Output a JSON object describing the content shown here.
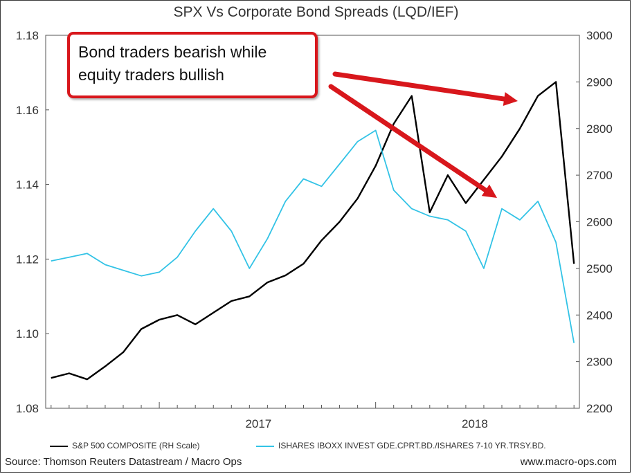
{
  "chart_data": {
    "type": "line",
    "title": "SPX Vs Corporate Bond Spreads (LQD/IEF)",
    "x_tick_labels": [
      "2017",
      "2018"
    ],
    "left_axis": {
      "ylim": [
        1.08,
        1.18
      ],
      "ticks": [
        "1.08",
        "1.10",
        "1.12",
        "1.14",
        "1.16",
        "1.18"
      ]
    },
    "right_axis": {
      "ylim": [
        2200,
        3000
      ],
      "ticks": [
        "2200",
        "2300",
        "2400",
        "2500",
        "2600",
        "2700",
        "2800",
        "2900",
        "3000"
      ]
    },
    "grid": false,
    "legend_position": "bottom",
    "series": [
      {
        "name": "S&P 500 COMPOSITE (RH Scale)",
        "axis": "right",
        "color": "#000000",
        "x": [
          "2016-07",
          "2016-08",
          "2016-09",
          "2016-10",
          "2016-11",
          "2016-12",
          "2017-01",
          "2017-02",
          "2017-03",
          "2017-04",
          "2017-05",
          "2017-06",
          "2017-07",
          "2017-08",
          "2017-09",
          "2017-10",
          "2017-11",
          "2017-12",
          "2018-01",
          "2018-02",
          "2018-03",
          "2018-04",
          "2018-05",
          "2018-06",
          "2018-07",
          "2018-08",
          "2018-09",
          "2018-10",
          "2018-11",
          "2018-12"
        ],
        "values": [
          2265,
          2275,
          2262,
          2290,
          2320,
          2370,
          2390,
          2400,
          2380,
          2405,
          2430,
          2440,
          2470,
          2485,
          2510,
          2560,
          2600,
          2650,
          2720,
          2810,
          2870,
          2620,
          2700,
          2640,
          2690,
          2740,
          2800,
          2870,
          2900,
          2510
        ]
      },
      {
        "name": "ISHARES IBOXX INVEST GDE.CPRT.BD./ISHARES 7-10 YR.TRSY.BD.",
        "axis": "left",
        "color": "#33c3e6",
        "x": [
          "2016-07",
          "2016-08",
          "2016-09",
          "2016-10",
          "2016-11",
          "2016-12",
          "2017-01",
          "2017-02",
          "2017-03",
          "2017-04",
          "2017-05",
          "2017-06",
          "2017-07",
          "2017-08",
          "2017-09",
          "2017-10",
          "2017-11",
          "2017-12",
          "2018-01",
          "2018-02",
          "2018-03",
          "2018-04",
          "2018-05",
          "2018-06",
          "2018-07",
          "2018-08",
          "2018-09",
          "2018-10",
          "2018-11",
          "2018-12"
        ],
        "values": [
          1.1195,
          1.1205,
          1.1215,
          1.1185,
          1.117,
          1.1155,
          1.1165,
          1.1205,
          1.1275,
          1.1335,
          1.1275,
          1.1175,
          1.1255,
          1.1355,
          1.1415,
          1.1395,
          1.1455,
          1.1515,
          1.1545,
          1.1385,
          1.1335,
          1.1315,
          1.1305,
          1.1275,
          1.1175,
          1.1335,
          1.1305,
          1.1355,
          1.1245,
          1.0975
        ]
      }
    ],
    "annotations": [
      {
        "text": "Bond traders bearish while equity traders bullish",
        "color": "#d8171c"
      }
    ]
  },
  "source": "Source: Thomson Reuters Datastream / Macro Ops",
  "website": "www.macro-ops.com"
}
